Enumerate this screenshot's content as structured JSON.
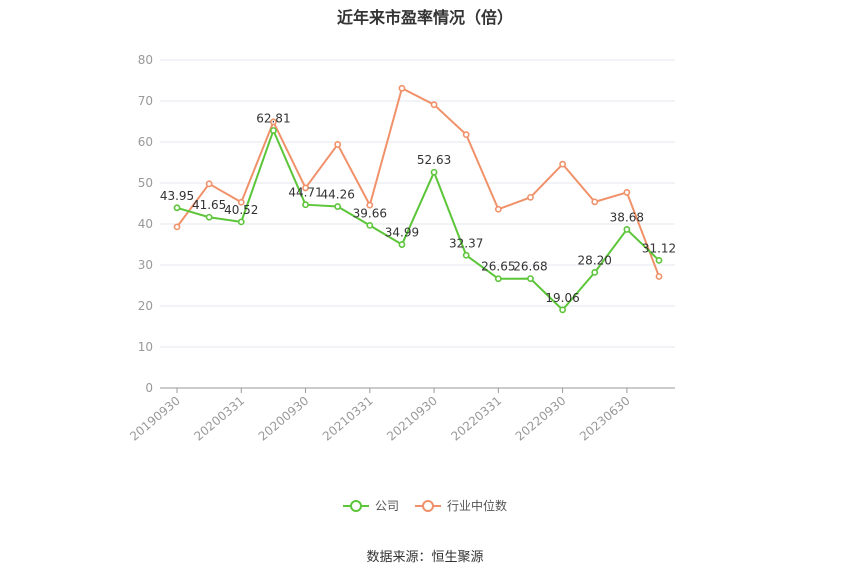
{
  "chart_data": {
    "type": "line",
    "title": "近年来市盈率情况（倍）",
    "source": "数据来源：恒生聚源",
    "ylim": [
      0,
      80
    ],
    "yticks": [
      0,
      10,
      20,
      30,
      40,
      50,
      60,
      70,
      80
    ],
    "xtick_labels": [
      "20190930",
      "20200331",
      "20200930",
      "20210331",
      "20210930",
      "20220331",
      "20220930",
      "20230630"
    ],
    "legend_position": "bottom",
    "grid": true,
    "series": [
      {
        "name": "公司",
        "color": "#5cc53a",
        "values": [
          43.95,
          41.65,
          40.52,
          62.81,
          44.71,
          44.26,
          39.66,
          34.99,
          52.63,
          32.37,
          26.65,
          26.68,
          19.06,
          28.2,
          38.68,
          31.12
        ],
        "labels": [
          "43.95",
          "41.65",
          "40.52",
          "62.81",
          "44.71",
          "44.26",
          "39.66",
          "34.99",
          "52.63",
          "32.37",
          "26.65",
          "26.68",
          "19.06",
          "28.20",
          "38.68",
          "31.12"
        ]
      },
      {
        "name": "行业中位数",
        "color": "#f0916a",
        "values": [
          39.3,
          49.8,
          45.3,
          64.9,
          48.8,
          59.4,
          44.6,
          73.1,
          69.1,
          61.8,
          43.6,
          46.5,
          54.6,
          45.4,
          47.7,
          27.2
        ]
      }
    ]
  }
}
